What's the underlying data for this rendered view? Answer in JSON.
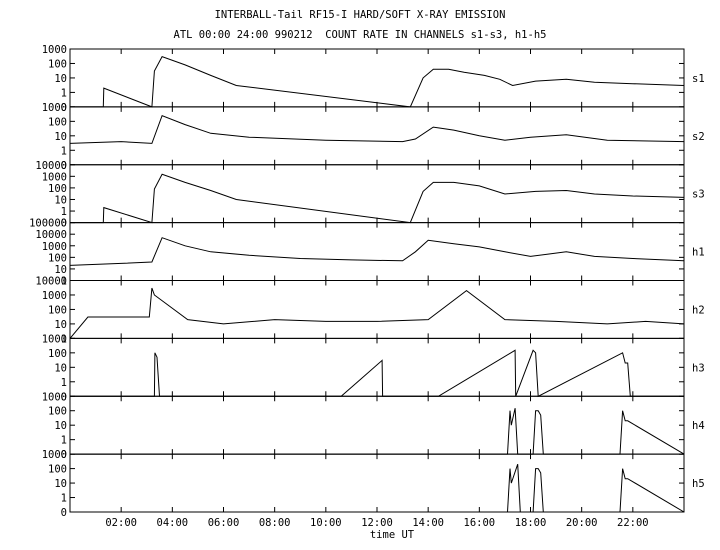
{
  "title": "INTERBALL-Tail RF15-I HARD/SOFT X-RAY EMISSION",
  "subtitle": "ATL 00:00 24:00 990212  COUNT RATE IN CHANNELS s1-s3, h1-h5",
  "chart_data": {
    "type": "line",
    "title": "INTERBALL-Tail RF15-I HARD/SOFT X-RAY EMISSION",
    "subtitle": "ATL 00:00 24:00 990212  COUNT RATE IN CHANNELS s1-s3, h1-h5",
    "xlabel": "time UT",
    "xlim": [
      0,
      24
    ],
    "x_ticks": [
      2,
      4,
      6,
      8,
      10,
      12,
      14,
      16,
      18,
      20,
      22
    ],
    "x_tick_labels": [
      "02:00",
      "04:00",
      "06:00",
      "08:00",
      "10:00",
      "12:00",
      "14:00",
      "16:00",
      "18:00",
      "20:00",
      "22:00"
    ],
    "y_scale": "log",
    "grid": false,
    "panels": [
      {
        "name": "s1",
        "ylim": [
          0.1,
          1000
        ],
        "y_ticks": [
          1000,
          100,
          10,
          1,
          0
        ],
        "y_tick_labels": [
          "1000",
          "100",
          "10",
          "1",
          "0"
        ],
        "x": [
          0,
          1.3,
          1.32,
          3.2,
          3.3,
          3.6,
          4.5,
          5.5,
          6.5,
          13.3,
          13.8,
          14.2,
          14.8,
          15.4,
          16.2,
          16.8,
          17.3,
          18.2,
          19.4,
          20.5,
          22,
          24
        ],
        "y": [
          0.1,
          0.1,
          2,
          0.1,
          30,
          300,
          80,
          15,
          3,
          0.1,
          10,
          40,
          40,
          25,
          15,
          8,
          3,
          6,
          8,
          5,
          4,
          3
        ]
      },
      {
        "name": "s2",
        "ylim": [
          0.1,
          1000
        ],
        "y_ticks": [
          1000,
          100,
          10,
          1,
          0
        ],
        "y_tick_labels": [
          "1000",
          "100",
          "10",
          "1",
          "0"
        ],
        "x": [
          0,
          2,
          3.2,
          3.6,
          4.5,
          5.5,
          7,
          10,
          13,
          13.5,
          14.2,
          15,
          16,
          17,
          18,
          19.4,
          21,
          24
        ],
        "y": [
          3,
          4,
          3,
          250,
          60,
          15,
          8,
          5,
          4,
          6,
          40,
          25,
          10,
          5,
          8,
          12,
          5,
          4
        ]
      },
      {
        "name": "s3",
        "ylim": [
          0.1,
          10000
        ],
        "y_ticks": [
          10000,
          1000,
          100,
          10,
          1,
          0
        ],
        "y_tick_labels": [
          "10000",
          "1000",
          "100",
          "10",
          "1",
          "0"
        ],
        "x": [
          0,
          1.3,
          1.32,
          3.2,
          3.3,
          3.6,
          4.5,
          5.5,
          6.5,
          13.3,
          13.8,
          14.2,
          15,
          16,
          17,
          18.2,
          19.4,
          20.5,
          22,
          24
        ],
        "y": [
          0.1,
          0.1,
          2,
          0.1,
          80,
          1500,
          300,
          60,
          10,
          0.1,
          50,
          300,
          300,
          150,
          30,
          50,
          60,
          30,
          20,
          15
        ]
      },
      {
        "name": "h1",
        "ylim": [
          1,
          100000
        ],
        "y_ticks": [
          100000,
          10000,
          1000,
          100,
          10,
          1
        ],
        "y_tick_labels": [
          "100000",
          "10000",
          "1000",
          "100",
          "10",
          "1"
        ],
        "x": [
          0,
          2,
          3.2,
          3.6,
          4.5,
          5.5,
          7,
          9,
          11,
          13,
          13.5,
          14,
          15,
          16,
          17,
          18,
          19.4,
          20.5,
          22,
          24
        ],
        "y": [
          20,
          30,
          40,
          5000,
          1000,
          300,
          150,
          80,
          60,
          50,
          300,
          3000,
          1500,
          800,
          300,
          120,
          300,
          120,
          80,
          50
        ]
      },
      {
        "name": "h2",
        "ylim": [
          1,
          10000
        ],
        "y_ticks": [
          10000,
          1000,
          100,
          10,
          1
        ],
        "y_tick_labels": [
          "10000",
          "1000",
          "100",
          "10",
          "1"
        ],
        "x": [
          0,
          0.7,
          3.1,
          3.2,
          3.3,
          4.6,
          6,
          8,
          10,
          12,
          14,
          15.5,
          17,
          19,
          21,
          22.5,
          24
        ],
        "y": [
          1,
          30,
          30,
          3000,
          1000,
          20,
          10,
          20,
          15,
          15,
          20,
          2000,
          20,
          15,
          10,
          15,
          10
        ]
      },
      {
        "name": "h3",
        "ylim": [
          0.1,
          1000
        ],
        "y_ticks": [
          1000,
          100,
          10,
          1,
          0
        ],
        "y_tick_labels": [
          "1000",
          "100",
          "10",
          "1",
          "0"
        ],
        "x": [
          0,
          3.3,
          3.32,
          3.4,
          3.5,
          10.6,
          12.2,
          12.22,
          14.4,
          17.4,
          17.42,
          18.1,
          18.2,
          18.3,
          21.6,
          21.7,
          21.8,
          21.9,
          24
        ],
        "y": [
          0.1,
          0.1,
          100,
          50,
          0.1,
          0.1,
          30,
          0.1,
          0.1,
          150,
          0.1,
          150,
          100,
          0.1,
          100,
          20,
          20,
          0.1,
          0.1
        ]
      },
      {
        "name": "h4",
        "ylim": [
          0.1,
          1000
        ],
        "y_ticks": [
          1000,
          100,
          10,
          1,
          0
        ],
        "y_tick_labels": [
          "1000",
          "100",
          "10",
          "1",
          "0"
        ],
        "x": [
          0,
          17.1,
          17.2,
          17.25,
          17.4,
          17.5,
          18.1,
          18.2,
          18.3,
          18.4,
          18.5,
          21.5,
          21.6,
          21.7,
          21.8,
          24
        ],
        "y": [
          0.1,
          0.1,
          100,
          10,
          150,
          0.1,
          0.1,
          100,
          100,
          50,
          0.1,
          0.1,
          100,
          20,
          20,
          0.1
        ]
      },
      {
        "name": "h5",
        "ylim": [
          0.1,
          1000
        ],
        "y_ticks": [
          1000,
          100,
          10,
          1,
          0
        ],
        "y_tick_labels": [
          "1000",
          "100",
          "10",
          "1",
          "0"
        ],
        "x": [
          0,
          17.1,
          17.2,
          17.25,
          17.5,
          17.6,
          18.1,
          18.2,
          18.3,
          18.4,
          18.5,
          21.5,
          21.6,
          21.7,
          21.8,
          24
        ],
        "y": [
          0.1,
          0.1,
          100,
          10,
          200,
          0.1,
          0.1,
          100,
          100,
          50,
          0.1,
          0.1,
          100,
          20,
          20,
          0.1
        ]
      }
    ]
  }
}
